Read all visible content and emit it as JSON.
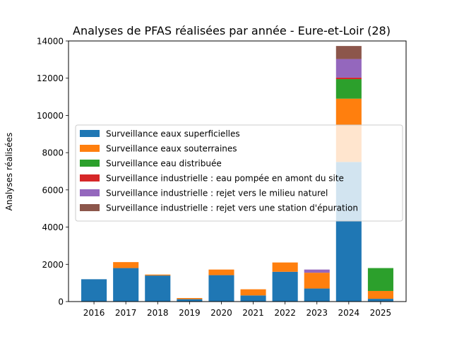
{
  "chart_data": {
    "type": "bar",
    "stacked": true,
    "title": "Analyses de PFAS réalisées par année - Eure-et-Loir (28)",
    "xlabel": "",
    "ylabel": "Analyses réalisées",
    "ylim": [
      0,
      14000
    ],
    "yticks": [
      0,
      2000,
      4000,
      6000,
      8000,
      10000,
      12000,
      14000
    ],
    "grid": false,
    "legend_position": "center-right",
    "categories": [
      "2016",
      "2017",
      "2018",
      "2019",
      "2020",
      "2021",
      "2022",
      "2023",
      "2024",
      "2025"
    ],
    "series": [
      {
        "name": "Surveillance eaux superficielles",
        "color": "#1f77b4",
        "values": [
          1200,
          1800,
          1400,
          130,
          1420,
          330,
          1600,
          700,
          7500,
          150
        ]
      },
      {
        "name": "Surveillance eaux souterraines",
        "color": "#ff7f0e",
        "values": [
          0,
          320,
          50,
          60,
          300,
          330,
          500,
          850,
          3400,
          420
        ]
      },
      {
        "name": "Surveillance eau distribuée",
        "color": "#2ca02c",
        "values": [
          0,
          0,
          0,
          0,
          0,
          0,
          0,
          0,
          1050,
          1230
        ]
      },
      {
        "name": "Surveillance industrielle : eau pompée en amont du site",
        "color": "#d62728",
        "values": [
          0,
          0,
          0,
          0,
          0,
          0,
          0,
          0,
          80,
          0
        ]
      },
      {
        "name": "Surveillance industrielle : rejet vers le milieu naturel",
        "color": "#9467bd",
        "values": [
          0,
          0,
          0,
          0,
          0,
          0,
          0,
          170,
          1000,
          0
        ]
      },
      {
        "name": "Surveillance industrielle : rejet vers une station d'épuration",
        "color": "#8c564b",
        "values": [
          0,
          0,
          0,
          0,
          0,
          0,
          0,
          0,
          700,
          0
        ]
      }
    ]
  }
}
